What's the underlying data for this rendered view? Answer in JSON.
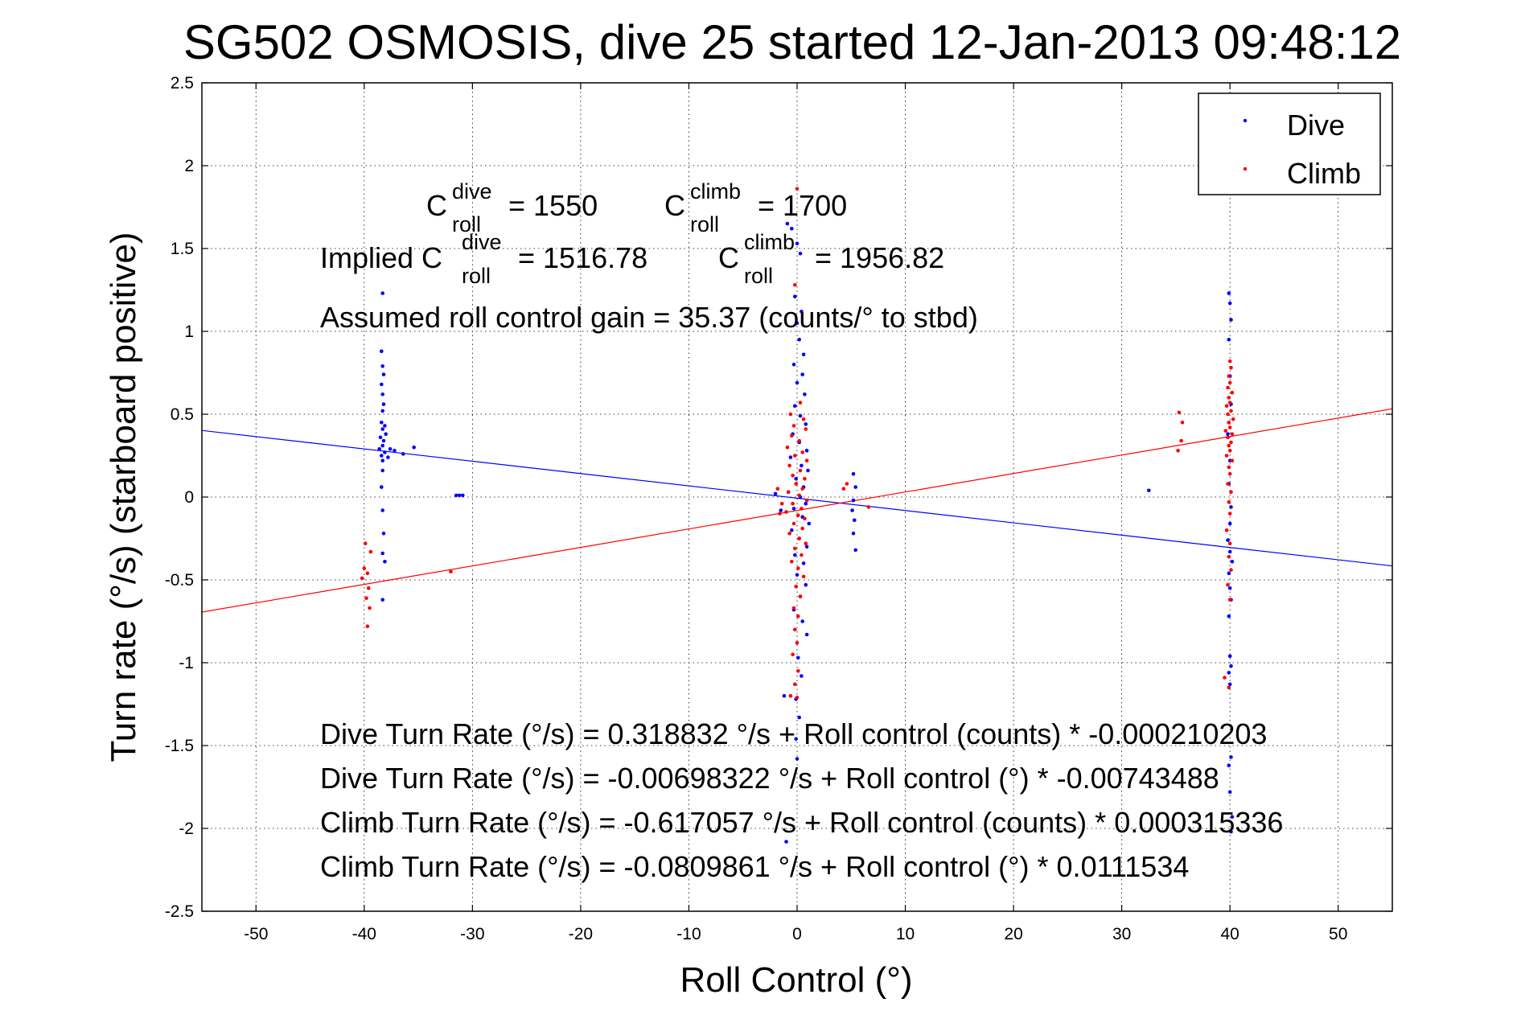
{
  "chart_data": {
    "type": "scatter",
    "title": "SG502 OSMOSIS, dive 25 started 12-Jan-2013 09:48:12",
    "xlabel": "Roll Control (°)",
    "ylabel": "Turn rate (°/s)  (starboard positive)",
    "xlim": [
      -55,
      55
    ],
    "ylim": [
      -2.5,
      2.5
    ],
    "xticks": [
      -50,
      -40,
      -30,
      -20,
      -10,
      0,
      10,
      20,
      30,
      40,
      50
    ],
    "yticks": [
      2.5,
      2,
      1.5,
      1,
      0.5,
      0,
      -0.5,
      -1,
      -1.5,
      -2,
      -2.5
    ],
    "xtick_labels": [
      "-50",
      "-40",
      "-30",
      "-20",
      "-10",
      "0",
      "10",
      "20",
      "30",
      "40",
      "50"
    ],
    "ytick_labels": [
      "2.5",
      "2",
      "1.5",
      "1",
      "0.5",
      "0",
      "-0.5",
      "-1",
      "-1.5",
      "-2",
      "-2.5"
    ],
    "grid": true,
    "legend_position": "top-right",
    "series": [
      {
        "name": "Dive",
        "color": "#0000ff",
        "points": [
          [
            -38.3,
            1.23
          ],
          [
            -38.4,
            0.88
          ],
          [
            -38.3,
            0.79
          ],
          [
            -38.2,
            0.74
          ],
          [
            -38.4,
            0.68
          ],
          [
            -38.3,
            0.62
          ],
          [
            -38.2,
            0.56
          ],
          [
            -38.3,
            0.52
          ],
          [
            -38.4,
            0.45
          ],
          [
            -38.1,
            0.43
          ],
          [
            -38.3,
            0.41
          ],
          [
            -38.0,
            0.38
          ],
          [
            -38.5,
            0.36
          ],
          [
            -38.2,
            0.34
          ],
          [
            -38.3,
            0.31
          ],
          [
            -38.6,
            0.29
          ],
          [
            -38.1,
            0.27
          ],
          [
            -38.4,
            0.25
          ],
          [
            -38.3,
            0.22
          ],
          [
            -37.8,
            0.24
          ],
          [
            -37.6,
            0.29
          ],
          [
            -38.3,
            0.16
          ],
          [
            -38.4,
            0.06
          ],
          [
            -38.3,
            -0.08
          ],
          [
            -38.2,
            -0.22
          ],
          [
            -38.3,
            -0.34
          ],
          [
            -38.1,
            -0.39
          ],
          [
            -38.3,
            -0.62
          ],
          [
            -37.2,
            0.28
          ],
          [
            -35.4,
            0.3
          ],
          [
            -36.4,
            0.26
          ],
          [
            -31.5,
            0.01
          ],
          [
            -31.2,
            0.01
          ],
          [
            -30.9,
            0.01
          ],
          [
            -0.9,
            1.65
          ],
          [
            -0.5,
            1.62
          ],
          [
            0.0,
            1.53
          ],
          [
            0.3,
            1.47
          ],
          [
            -0.2,
            1.21
          ],
          [
            0.4,
            1.12
          ],
          [
            0.0,
            1.05
          ],
          [
            0.2,
            0.95
          ],
          [
            0.6,
            0.86
          ],
          [
            -0.3,
            0.8
          ],
          [
            0.5,
            0.74
          ],
          [
            0.0,
            0.69
          ],
          [
            0.7,
            0.62
          ],
          [
            -0.2,
            0.55
          ],
          [
            0.3,
            0.49
          ],
          [
            0.8,
            0.44
          ],
          [
            -0.4,
            0.38
          ],
          [
            0.2,
            0.33
          ],
          [
            0.9,
            0.28
          ],
          [
            -0.6,
            0.24
          ],
          [
            0.4,
            0.19
          ],
          [
            1.0,
            0.16
          ],
          [
            -0.1,
            0.11
          ],
          [
            0.6,
            0.06
          ],
          [
            -0.8,
            0.03
          ],
          [
            0.3,
            0.0
          ],
          [
            0.8,
            -0.04
          ],
          [
            -0.3,
            -0.07
          ],
          [
            0.5,
            -0.12
          ],
          [
            1.1,
            -0.16
          ],
          [
            -0.5,
            -0.2
          ],
          [
            0.2,
            -0.25
          ],
          [
            0.9,
            -0.3
          ],
          [
            -0.2,
            -0.35
          ],
          [
            0.6,
            -0.4
          ],
          [
            0.0,
            -0.47
          ],
          [
            0.8,
            -0.53
          ],
          [
            0.3,
            -0.6
          ],
          [
            -0.3,
            -0.68
          ],
          [
            0.5,
            -0.75
          ],
          [
            0.9,
            -0.83
          ],
          [
            0.1,
            -0.97
          ],
          [
            0.4,
            -1.08
          ],
          [
            -0.1,
            -1.22
          ],
          [
            -1.2,
            -1.2
          ],
          [
            0.2,
            -1.33
          ],
          [
            -0.1,
            -1.46
          ],
          [
            0.0,
            -1.58
          ],
          [
            -1.0,
            -2.08
          ],
          [
            -2.0,
            0.02
          ],
          [
            -1.5,
            -0.08
          ],
          [
            5.2,
            0.14
          ],
          [
            5.4,
            0.06
          ],
          [
            5.2,
            -0.02
          ],
          [
            5.1,
            -0.08
          ],
          [
            5.3,
            -0.14
          ],
          [
            5.2,
            -0.22
          ],
          [
            5.4,
            -0.32
          ],
          [
            32.5,
            0.04
          ],
          [
            39.9,
            1.23
          ],
          [
            40.0,
            1.17
          ],
          [
            40.1,
            1.07
          ],
          [
            39.9,
            0.95
          ],
          [
            40.0,
            0.73
          ],
          [
            40.1,
            0.56
          ],
          [
            39.8,
            0.38
          ],
          [
            40.0,
            0.22
          ],
          [
            39.9,
            0.08
          ],
          [
            40.1,
            -0.06
          ],
          [
            40.0,
            -0.16
          ],
          [
            39.8,
            -0.26
          ],
          [
            40.0,
            -0.33
          ],
          [
            40.2,
            -0.39
          ],
          [
            39.9,
            -0.46
          ],
          [
            40.0,
            -0.55
          ],
          [
            40.1,
            -0.62
          ],
          [
            39.9,
            -0.72
          ],
          [
            40.0,
            -0.96
          ],
          [
            40.1,
            -1.02
          ],
          [
            39.9,
            -1.06
          ],
          [
            40.0,
            -1.13
          ],
          [
            40.1,
            -1.57
          ],
          [
            39.9,
            -1.62
          ],
          [
            40.0,
            -1.78
          ],
          [
            40.2,
            -1.93
          ],
          [
            40.1,
            -2.02
          ]
        ]
      },
      {
        "name": "Climb",
        "color": "#ff0000",
        "points": [
          [
            0.0,
            1.86
          ],
          [
            -0.2,
            1.28
          ],
          [
            0.3,
            0.57
          ],
          [
            -0.6,
            0.5
          ],
          [
            0.6,
            0.47
          ],
          [
            -0.3,
            0.43
          ],
          [
            0.8,
            0.41
          ],
          [
            -0.5,
            0.37
          ],
          [
            0.2,
            0.34
          ],
          [
            -0.9,
            0.3
          ],
          [
            0.5,
            0.27
          ],
          [
            -0.2,
            0.25
          ],
          [
            0.9,
            0.22
          ],
          [
            -0.7,
            0.19
          ],
          [
            0.3,
            0.16
          ],
          [
            -0.4,
            0.13
          ],
          [
            0.7,
            0.11
          ],
          [
            -0.1,
            0.08
          ],
          [
            0.5,
            0.05
          ],
          [
            -0.8,
            0.03
          ],
          [
            0.2,
            0.01
          ],
          [
            0.9,
            -0.02
          ],
          [
            -0.4,
            -0.04
          ],
          [
            0.4,
            -0.07
          ],
          [
            -1.0,
            -0.09
          ],
          [
            0.1,
            -0.11
          ],
          [
            0.7,
            -0.13
          ],
          [
            -0.3,
            -0.16
          ],
          [
            0.5,
            -0.19
          ],
          [
            -0.7,
            -0.22
          ],
          [
            0.2,
            -0.25
          ],
          [
            0.8,
            -0.28
          ],
          [
            -0.2,
            -0.31
          ],
          [
            0.4,
            -0.35
          ],
          [
            -0.5,
            -0.39
          ],
          [
            0.1,
            -0.43
          ],
          [
            0.6,
            -0.48
          ],
          [
            -0.1,
            -0.54
          ],
          [
            0.3,
            -0.6
          ],
          [
            -0.3,
            -0.67
          ],
          [
            0.1,
            -0.72
          ],
          [
            -0.2,
            -0.8
          ],
          [
            0.0,
            -0.88
          ],
          [
            -0.4,
            -0.95
          ],
          [
            0.1,
            -1.05
          ],
          [
            -0.2,
            -1.13
          ],
          [
            0.0,
            -1.21
          ],
          [
            -0.6,
            -1.2
          ],
          [
            -1.4,
            -0.04
          ],
          [
            -1.8,
            0.05
          ],
          [
            -1.6,
            -0.1
          ],
          [
            -39.9,
            -0.28
          ],
          [
            -39.4,
            -0.33
          ],
          [
            -40.0,
            -0.43
          ],
          [
            -39.7,
            -0.46
          ],
          [
            -40.2,
            -0.49
          ],
          [
            -39.6,
            -0.55
          ],
          [
            -39.8,
            -0.61
          ],
          [
            -39.5,
            -0.67
          ],
          [
            -39.7,
            -0.78
          ],
          [
            -32.0,
            -0.45
          ],
          [
            4.3,
            0.05
          ],
          [
            4.6,
            0.08
          ],
          [
            6.6,
            -0.06
          ],
          [
            35.3,
            0.51
          ],
          [
            35.6,
            0.45
          ],
          [
            35.5,
            0.34
          ],
          [
            35.2,
            0.28
          ],
          [
            40.0,
            0.82
          ],
          [
            40.1,
            0.78
          ],
          [
            39.9,
            0.73
          ],
          [
            40.0,
            0.69
          ],
          [
            39.8,
            0.66
          ],
          [
            40.2,
            0.63
          ],
          [
            39.9,
            0.6
          ],
          [
            40.0,
            0.57
          ],
          [
            39.7,
            0.55
          ],
          [
            40.1,
            0.52
          ],
          [
            39.8,
            0.5
          ],
          [
            40.3,
            0.47
          ],
          [
            39.9,
            0.45
          ],
          [
            40.0,
            0.42
          ],
          [
            39.6,
            0.4
          ],
          [
            40.2,
            0.38
          ],
          [
            39.8,
            0.36
          ],
          [
            40.1,
            0.33
          ],
          [
            39.9,
            0.31
          ],
          [
            40.0,
            0.28
          ],
          [
            39.7,
            0.25
          ],
          [
            40.2,
            0.22
          ],
          [
            39.9,
            0.18
          ],
          [
            40.0,
            0.14
          ],
          [
            39.8,
            0.08
          ],
          [
            40.1,
            0.03
          ],
          [
            39.9,
            -0.03
          ],
          [
            40.0,
            -0.1
          ],
          [
            39.7,
            -0.2
          ],
          [
            40.0,
            -0.28
          ],
          [
            39.9,
            -0.36
          ],
          [
            40.1,
            -0.44
          ],
          [
            39.8,
            -0.53
          ],
          [
            40.0,
            -0.62
          ],
          [
            39.5,
            -1.09
          ],
          [
            39.9,
            -1.15
          ]
        ]
      }
    ],
    "fit_lines": [
      {
        "name": "Dive fit",
        "color": "#0000ff",
        "intercept": -0.00698322,
        "slope": -0.00743488
      },
      {
        "name": "Climb fit",
        "color": "#ff0000",
        "intercept": -0.0809861,
        "slope": 0.0111534
      }
    ],
    "annotations": {
      "c_dive": {
        "base": "C",
        "sup": "dive",
        "sub": "roll",
        "rest": " = 1550"
      },
      "c_climb": {
        "base": "C",
        "sup": "climb",
        "sub": "roll",
        "rest": " = 1700"
      },
      "implied_dive": {
        "prefix": "Implied C",
        "sup": "dive",
        "sub": "roll",
        "rest": " = 1516.78"
      },
      "implied_climb": {
        "base": "C",
        "sup": "climb",
        "sub": "roll",
        "rest": " = 1956.82"
      },
      "gain": "Assumed roll control gain = 35.37 (counts/° to stbd)",
      "eq_lines": [
        "Dive Turn Rate (°/s) = 0.318832 °/s + Roll control (counts) * -0.000210203",
        "Dive Turn Rate (°/s) = -0.00698322 °/s + Roll control (°) * -0.00743488",
        "Climb Turn Rate (°/s) = -0.617057 °/s + Roll control (counts) * 0.000315336",
        "Climb Turn Rate (°/s) = -0.0809861 °/s + Roll control (°) * 0.0111534"
      ]
    }
  }
}
